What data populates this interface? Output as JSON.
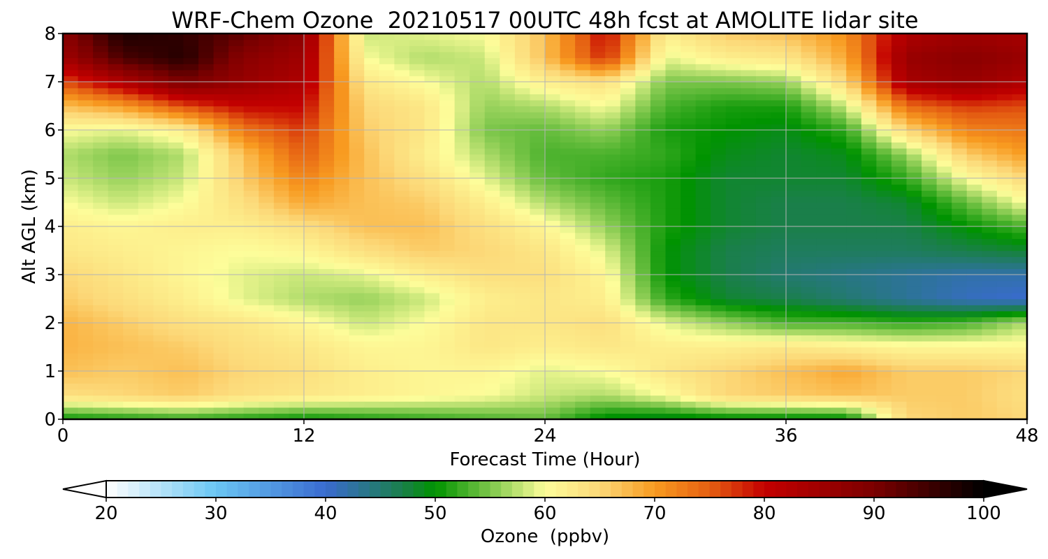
{
  "chart_data": {
    "type": "heatmap",
    "title": "WRF-Chem Ozone  20210517 00UTC 48h fcst at AMOLITE lidar site",
    "xlabel": "Forecast Time (Hour)",
    "ylabel": "Alt AGL (km)",
    "xlim": [
      0,
      48
    ],
    "ylim": [
      0,
      8
    ],
    "x_ticks": [
      0,
      12,
      24,
      36,
      48
    ],
    "y_ticks": [
      0,
      1,
      2,
      3,
      4,
      5,
      6,
      7,
      8
    ],
    "grid": true,
    "x_hours": [
      0,
      3,
      6,
      9,
      12,
      15,
      18,
      21,
      24,
      27,
      30,
      33,
      36,
      39,
      42,
      45,
      48
    ],
    "z_km": [
      0,
      0.5,
      1,
      1.5,
      2,
      2.5,
      3,
      3.5,
      4,
      4.5,
      5,
      5.5,
      6,
      6.5,
      7,
      7.5,
      8
    ],
    "ozone_ppbv_rows": [
      [
        50,
        51,
        52,
        51,
        50,
        51,
        52,
        53,
        54,
        49,
        48,
        49,
        49,
        49,
        65,
        66,
        65
      ],
      [
        64,
        65,
        66,
        64,
        63,
        62,
        61,
        60,
        58,
        57,
        60,
        65,
        66,
        67,
        66,
        66,
        64
      ],
      [
        67,
        66,
        67,
        65,
        64,
        62,
        61,
        61,
        59,
        60,
        63,
        65,
        67,
        69,
        66,
        66,
        65
      ],
      [
        68,
        67,
        66,
        64,
        63,
        61,
        61,
        63,
        62,
        63,
        62,
        62,
        63,
        62,
        61,
        61,
        61
      ],
      [
        68,
        66,
        64,
        63,
        61,
        58,
        60,
        63,
        63,
        64,
        59,
        56,
        53,
        53,
        52,
        53,
        57
      ],
      [
        66,
        64,
        62,
        59,
        57,
        56,
        58,
        62,
        63,
        62,
        52,
        48,
        47,
        45,
        43,
        41,
        40
      ],
      [
        65,
        63,
        61,
        59,
        58,
        59,
        62,
        64,
        64,
        61,
        50,
        47,
        45,
        44,
        43,
        42,
        42
      ],
      [
        63,
        62,
        61,
        60,
        61,
        64,
        66,
        65,
        63,
        59,
        50,
        47,
        46,
        46,
        46,
        47,
        48
      ],
      [
        62,
        61,
        62,
        62,
        64,
        67,
        67,
        64,
        61,
        56,
        51,
        48,
        47,
        47,
        47,
        50,
        53
      ],
      [
        60,
        58,
        60,
        64,
        69,
        67,
        66,
        62,
        57,
        54,
        51,
        48,
        47,
        47,
        48,
        54,
        60
      ],
      [
        58,
        56,
        58,
        66,
        72,
        67,
        64,
        59,
        54,
        52,
        51,
        48,
        48,
        48,
        52,
        60,
        65
      ],
      [
        57,
        55,
        57,
        67,
        75,
        67,
        62,
        57,
        53,
        53,
        52,
        49,
        48,
        49,
        56,
        66,
        70
      ],
      [
        60,
        59,
        62,
        73,
        77,
        66,
        63,
        55,
        54,
        56,
        51,
        50,
        49,
        52,
        65,
        72,
        73
      ],
      [
        67,
        70,
        76,
        80,
        80,
        65,
        63,
        56,
        57,
        60,
        53,
        51,
        51,
        58,
        74,
        77,
        76
      ],
      [
        76,
        83,
        90,
        86,
        83,
        63,
        60,
        57,
        62,
        64,
        55,
        55,
        56,
        65,
        84,
        86,
        83
      ],
      [
        85,
        94,
        97,
        88,
        85,
        60,
        57,
        58,
        67,
        78,
        59,
        62,
        63,
        69,
        86,
        88,
        86
      ],
      [
        88,
        98,
        96,
        92,
        87,
        58,
        59,
        60,
        67,
        80,
        62,
        66,
        67,
        71,
        83,
        85,
        84
      ]
    ],
    "colorbar": {
      "label": "Ozone  (ppbv)",
      "min": 20,
      "max": 100,
      "ticks": [
        20,
        30,
        40,
        50,
        60,
        70,
        80,
        90,
        100
      ],
      "extend": "both",
      "anchors": [
        {
          "v": 20,
          "c": "#ffffff"
        },
        {
          "v": 30,
          "c": "#6ac6f3"
        },
        {
          "v": 40,
          "c": "#3a6bd0"
        },
        {
          "v": 47,
          "c": "#1a7f4a"
        },
        {
          "v": 50,
          "c": "#009300"
        },
        {
          "v": 55,
          "c": "#7cc64a"
        },
        {
          "v": 60,
          "c": "#fdfd9a"
        },
        {
          "v": 65,
          "c": "#fcd878"
        },
        {
          "v": 70,
          "c": "#f89b20"
        },
        {
          "v": 75,
          "c": "#e55f12"
        },
        {
          "v": 80,
          "c": "#c40000"
        },
        {
          "v": 90,
          "c": "#7b0000"
        },
        {
          "v": 100,
          "c": "#000000"
        }
      ]
    }
  }
}
